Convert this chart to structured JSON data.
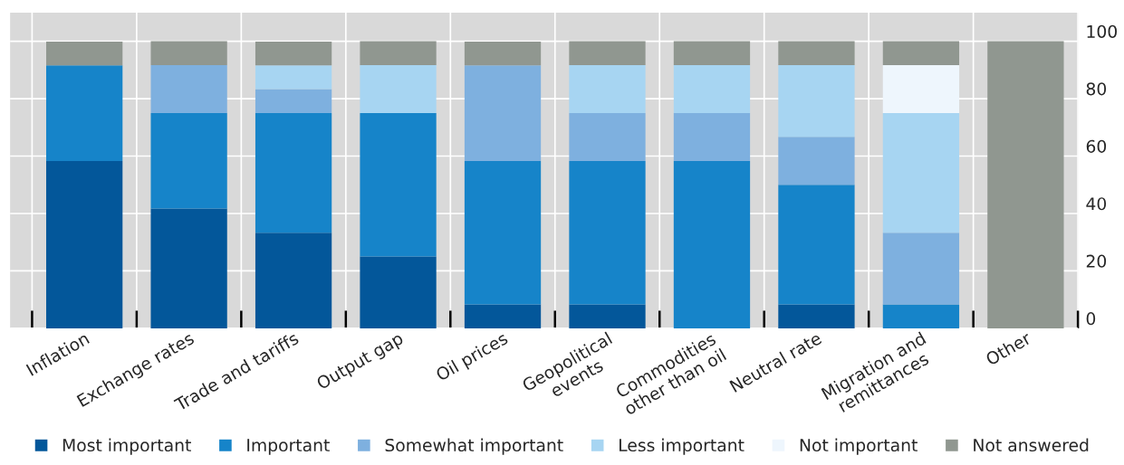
{
  "chart_data": {
    "type": "bar",
    "stacked": true,
    "categories": [
      "Inflation",
      "Exchange rates",
      "Trade and tariffs",
      "Output gap",
      "Oil prices",
      "Geopolitical\nevents",
      "Commodities\nother than oil",
      "Neutral rate",
      "Migration and\nremittances",
      "Other"
    ],
    "series": [
      {
        "name": "Most important",
        "color": "#03579a",
        "values": [
          58.3,
          41.7,
          33.3,
          25,
          8.3,
          8.3,
          null,
          8.3,
          null,
          null
        ]
      },
      {
        "name": "Important",
        "color": "#1684c9",
        "values": [
          33.3,
          33.3,
          41.7,
          50,
          50,
          50,
          58.3,
          41.7,
          8.3,
          null
        ]
      },
      {
        "name": "Somewhat important",
        "color": "#7eb0df",
        "values": [
          null,
          16.7,
          8.3,
          null,
          33.3,
          16.7,
          16.7,
          16.7,
          25,
          null
        ]
      },
      {
        "name": "Less important",
        "color": "#a7d5f2",
        "values": [
          null,
          null,
          8.3,
          16.7,
          null,
          16.7,
          16.7,
          25,
          41.7,
          null
        ]
      },
      {
        "name": "Not important",
        "color": "#eef6fd",
        "values": [
          null,
          null,
          null,
          null,
          null,
          null,
          null,
          null,
          16.7,
          null
        ]
      },
      {
        "name": "Not answered",
        "color": "#909790",
        "values": [
          8.3,
          8.3,
          8.3,
          8.3,
          8.3,
          8.3,
          8.3,
          8.3,
          8.3,
          100
        ]
      }
    ],
    "ylim": [
      0,
      110
    ],
    "yticks": [
      0,
      20,
      40,
      60,
      80,
      100
    ],
    "grid": true,
    "legend": "bottom"
  }
}
